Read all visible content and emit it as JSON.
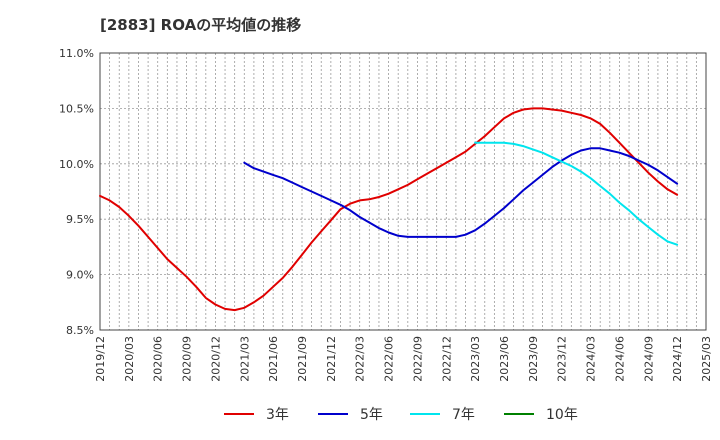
{
  "chart_data": {
    "type": "line",
    "title": "[2883]  ROAの平均値の推移",
    "xlabel": "",
    "ylabel": "",
    "ylim": [
      8.5,
      11.0
    ],
    "yticks": [
      8.5,
      9.0,
      9.5,
      10.0,
      10.5,
      11.0
    ],
    "ytick_labels": [
      "8.5%",
      "9.0%",
      "9.5%",
      "10.0%",
      "10.5%",
      "11.0%"
    ],
    "xtick_labels": [
      "2019/12",
      "2020/03",
      "2020/06",
      "2020/09",
      "2020/12",
      "2021/03",
      "2021/06",
      "2021/09",
      "2021/12",
      "2022/03",
      "2022/06",
      "2022/09",
      "2022/12",
      "2023/03",
      "2023/06",
      "2023/09",
      "2023/12",
      "2024/03",
      "2024/06",
      "2024/09",
      "2024/12",
      "2025/03"
    ],
    "grid": true,
    "legend_position": "bottom",
    "series": [
      {
        "name": "3年",
        "color": "#e00000",
        "x": [
          "2019/12",
          "2020/01",
          "2020/02",
          "2020/03",
          "2020/04",
          "2020/05",
          "2020/06",
          "2020/07",
          "2020/08",
          "2020/09",
          "2020/10",
          "2020/11",
          "2020/12",
          "2021/01",
          "2021/02",
          "2021/03",
          "2021/04",
          "2021/05",
          "2021/06",
          "2021/07",
          "2021/08",
          "2021/09",
          "2021/10",
          "2021/11",
          "2021/12",
          "2022/01",
          "2022/02",
          "2022/03",
          "2022/04",
          "2022/05",
          "2022/06",
          "2022/07",
          "2022/08",
          "2022/09",
          "2022/10",
          "2022/11",
          "2022/12",
          "2023/01",
          "2023/02",
          "2023/03",
          "2023/04",
          "2023/05",
          "2023/06",
          "2023/07",
          "2023/08",
          "2023/09",
          "2023/10",
          "2023/11",
          "2023/12",
          "2024/01",
          "2024/02",
          "2024/03",
          "2024/04",
          "2024/05",
          "2024/06",
          "2024/07",
          "2024/08",
          "2024/09",
          "2024/10",
          "2024/11",
          "2024/12"
        ],
        "values": [
          9.71,
          9.67,
          9.61,
          9.53,
          9.44,
          9.34,
          9.24,
          9.14,
          9.06,
          8.98,
          8.89,
          8.79,
          8.73,
          8.69,
          8.68,
          8.7,
          8.75,
          8.81,
          8.89,
          8.97,
          9.07,
          9.18,
          9.29,
          9.39,
          9.49,
          9.59,
          9.64,
          9.67,
          9.68,
          9.7,
          9.73,
          9.77,
          9.81,
          9.86,
          9.91,
          9.96,
          10.01,
          10.06,
          10.11,
          10.18,
          10.25,
          10.33,
          10.41,
          10.46,
          10.49,
          10.5,
          10.5,
          10.49,
          10.48,
          10.46,
          10.44,
          10.41,
          10.36,
          10.28,
          10.19,
          10.1,
          10.01,
          9.92,
          9.84,
          9.77,
          9.72
        ]
      },
      {
        "name": "5年",
        "color": "#0000cc",
        "x": [
          "2021/03",
          "2021/04",
          "2021/05",
          "2021/06",
          "2021/07",
          "2021/08",
          "2021/09",
          "2021/10",
          "2021/11",
          "2021/12",
          "2022/01",
          "2022/02",
          "2022/03",
          "2022/04",
          "2022/05",
          "2022/06",
          "2022/07",
          "2022/08",
          "2022/09",
          "2022/10",
          "2022/11",
          "2022/12",
          "2023/01",
          "2023/02",
          "2023/03",
          "2023/04",
          "2023/05",
          "2023/06",
          "2023/07",
          "2023/08",
          "2023/09",
          "2023/10",
          "2023/11",
          "2023/12",
          "2024/01",
          "2024/02",
          "2024/03",
          "2024/04",
          "2024/05",
          "2024/06",
          "2024/07",
          "2024/08",
          "2024/09",
          "2024/10",
          "2024/11",
          "2024/12"
        ],
        "values": [
          10.01,
          9.96,
          9.93,
          9.9,
          9.87,
          9.83,
          9.79,
          9.75,
          9.71,
          9.67,
          9.63,
          9.58,
          9.52,
          9.47,
          9.42,
          9.38,
          9.35,
          9.34,
          9.34,
          9.34,
          9.34,
          9.34,
          9.34,
          9.36,
          9.4,
          9.46,
          9.53,
          9.6,
          9.68,
          9.76,
          9.83,
          9.9,
          9.97,
          10.03,
          10.08,
          10.12,
          10.14,
          10.14,
          10.12,
          10.1,
          10.07,
          10.03,
          9.99,
          9.94,
          9.88,
          9.82
        ]
      },
      {
        "name": "7年",
        "color": "#00e5ee",
        "x": [
          "2023/03",
          "2023/04",
          "2023/05",
          "2023/06",
          "2023/07",
          "2023/08",
          "2023/09",
          "2023/10",
          "2023/11",
          "2023/12",
          "2024/01",
          "2024/02",
          "2024/03",
          "2024/04",
          "2024/05",
          "2024/06",
          "2024/07",
          "2024/08",
          "2024/09",
          "2024/10",
          "2024/11",
          "2024/12"
        ],
        "values": [
          10.19,
          10.19,
          10.19,
          10.19,
          10.18,
          10.16,
          10.13,
          10.1,
          10.06,
          10.02,
          9.98,
          9.93,
          9.87,
          9.8,
          9.73,
          9.65,
          9.58,
          9.5,
          9.43,
          9.36,
          9.3,
          9.27
        ]
      },
      {
        "name": "10年",
        "color": "#008000",
        "x": [],
        "values": []
      }
    ]
  }
}
